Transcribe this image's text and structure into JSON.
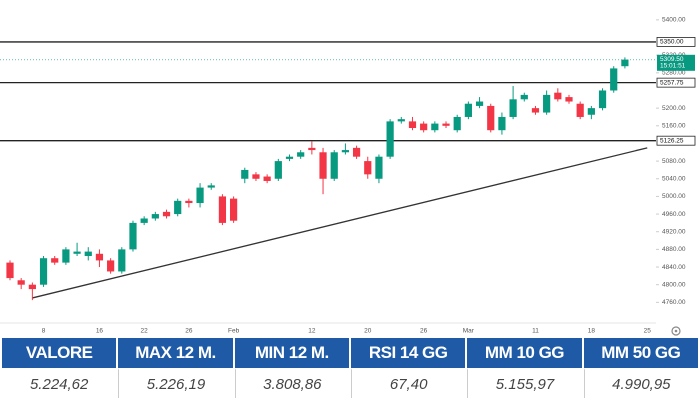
{
  "chart_data": {
    "type": "candlestick",
    "categories": [
      null,
      null,
      null,
      "8",
      null,
      null,
      null,
      null,
      "16",
      null,
      null,
      null,
      "22",
      null,
      null,
      null,
      "26",
      null,
      null,
      null,
      "Feb",
      null,
      null,
      null,
      null,
      null,
      null,
      "12",
      null,
      null,
      null,
      null,
      "20",
      null,
      null,
      null,
      null,
      "26",
      null,
      null,
      null,
      "Mar",
      null,
      null,
      null,
      null,
      null,
      "11",
      null,
      null,
      null,
      null,
      "18",
      null,
      null,
      null,
      null,
      "25"
    ],
    "open": [
      4850,
      4810,
      4800,
      4800,
      4860,
      4850,
      4870,
      4865,
      4870,
      4855,
      4830,
      4880,
      4940,
      4950,
      4965,
      4960,
      4990,
      4985,
      5020,
      5000,
      4995,
      5040,
      5050,
      5045,
      5040,
      5085,
      5090,
      5110,
      5100,
      5040,
      5100,
      5110,
      5080,
      5040,
      5090,
      5170,
      5170,
      5165,
      5150,
      5165,
      5150,
      5180,
      5205,
      5205,
      5150,
      5180,
      5220,
      5200,
      5190,
      5235,
      5225,
      5210,
      5185,
      5200,
      5240,
      5295,
      null,
      null
    ],
    "high": [
      4855,
      4815,
      4805,
      4865,
      4865,
      4885,
      4895,
      4885,
      4880,
      4860,
      4885,
      4945,
      4955,
      4965,
      4970,
      4995,
      4995,
      5030,
      5030,
      5005,
      5000,
      5065,
      5055,
      5050,
      5085,
      5095,
      5105,
      5125,
      5110,
      5105,
      5120,
      5115,
      5090,
      5095,
      5175,
      5180,
      5180,
      5170,
      5170,
      5170,
      5185,
      5215,
      5225,
      5210,
      5190,
      5250,
      5235,
      5205,
      5240,
      5245,
      5230,
      5215,
      5205,
      5245,
      5295,
      5315,
      null,
      null
    ],
    "low": [
      4810,
      4790,
      4765,
      4795,
      4845,
      4845,
      4865,
      4855,
      4840,
      4825,
      4825,
      4875,
      4935,
      4945,
      4950,
      4955,
      4975,
      4975,
      5015,
      4935,
      4940,
      5030,
      5035,
      5030,
      5035,
      5080,
      5085,
      5095,
      5005,
      5035,
      5095,
      5085,
      5040,
      5030,
      5085,
      5165,
      5150,
      5145,
      5145,
      5155,
      5145,
      5175,
      5200,
      5145,
      5140,
      5175,
      5215,
      5185,
      5185,
      5215,
      5210,
      5175,
      5175,
      5195,
      5235,
      5290,
      null,
      null
    ],
    "close": [
      4815,
      4800,
      4790,
      4860,
      4850,
      4880,
      4875,
      4875,
      4855,
      4830,
      4880,
      4940,
      4950,
      4960,
      4955,
      4990,
      4985,
      5020,
      5025,
      4940,
      4945,
      5060,
      5040,
      5035,
      5080,
      5090,
      5100,
      5105,
      5040,
      5100,
      5105,
      5090,
      5050,
      5090,
      5170,
      5175,
      5155,
      5150,
      5165,
      5160,
      5180,
      5210,
      5215,
      5150,
      5180,
      5220,
      5230,
      5190,
      5230,
      5220,
      5215,
      5180,
      5200,
      5240,
      5290,
      5310,
      null,
      null
    ],
    "ylim": [
      4720,
      5445
    ],
    "yticks": [
      {
        "value": 4760,
        "label": "4760.00"
      },
      {
        "value": 4800,
        "label": "4800.00"
      },
      {
        "value": 4840,
        "label": "4840.00"
      },
      {
        "value": 4880,
        "label": "4880.00"
      },
      {
        "value": 4920,
        "label": "4920.00"
      },
      {
        "value": 4960,
        "label": "4960.00"
      },
      {
        "value": 5000,
        "label": "5000.00"
      },
      {
        "value": 5040,
        "label": "5040.00"
      },
      {
        "value": 5080,
        "label": "5080.00"
      },
      {
        "value": 5160,
        "label": "5160.00"
      },
      {
        "value": 5200,
        "label": "5200.00"
      },
      {
        "value": 5280,
        "label": "5280.00"
      },
      {
        "value": 5320,
        "label": "5320.00"
      },
      {
        "value": 5400,
        "label": "5400.00"
      }
    ],
    "hlines": [
      {
        "value": 5350,
        "label": "5350.00"
      },
      {
        "value": 5257.75,
        "label": "5257.75"
      },
      {
        "value": 5126.25,
        "label": "5126.25"
      }
    ],
    "last": {
      "value": 5309.5,
      "label": "5309.50",
      "time": "15:01:51"
    },
    "trendline": [
      [
        2,
        4770
      ],
      [
        57,
        5110
      ]
    ],
    "colors": {
      "up": "#089981",
      "down": "#f23645",
      "line": "#222222"
    }
  },
  "table": {
    "headers": [
      "VALORE",
      "MAX 12 M.",
      "MIN 12 M.",
      "RSI 14 GG",
      "MM 10 GG",
      "MM 50 GG"
    ],
    "rows": [
      [
        "5.224,62",
        "5.226,19",
        "3.808,86",
        "67,40",
        "5.155,97",
        "4.990,95"
      ]
    ]
  }
}
